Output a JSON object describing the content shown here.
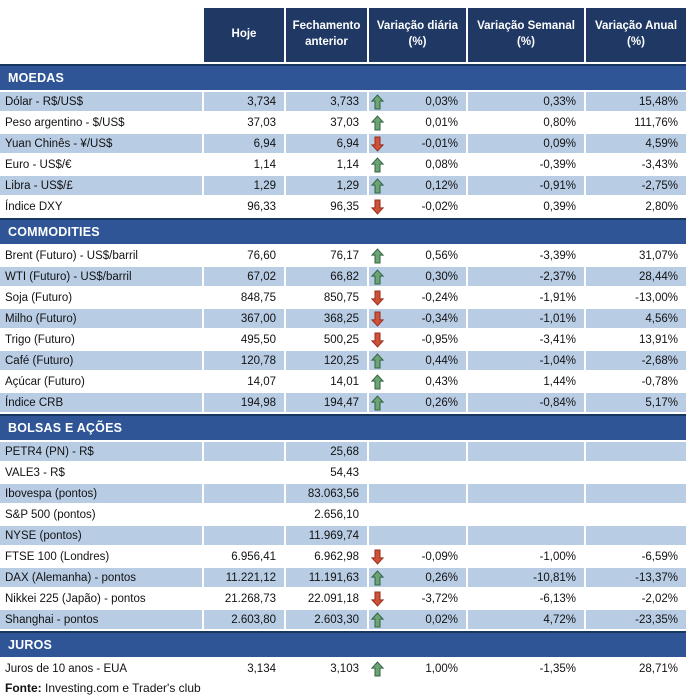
{
  "header": {
    "columns": [
      "Hoje",
      "Fechamento anterior",
      "Variação diária (%)",
      "Variação Semanal (%)",
      "Variação Anual (%)"
    ]
  },
  "sections": [
    {
      "title": "MOEDAS",
      "rows": [
        {
          "label": "Dólar - R$/US$",
          "hoje": "3,734",
          "fechamento": "3,733",
          "arrow": "up",
          "diaria": "0,03%",
          "semanal": "0,33%",
          "anual": "15,48%"
        },
        {
          "label": "Peso argentino - $/US$",
          "hoje": "37,03",
          "fechamento": "37,03",
          "arrow": "up",
          "diaria": "0,01%",
          "semanal": "0,80%",
          "anual": "111,76%"
        },
        {
          "label": "Yuan Chinês - ¥/US$",
          "hoje": "6,94",
          "fechamento": "6,94",
          "arrow": "down",
          "diaria": "-0,01%",
          "semanal": "0,09%",
          "anual": "4,59%"
        },
        {
          "label": "Euro - US$/€",
          "hoje": "1,14",
          "fechamento": "1,14",
          "arrow": "up",
          "diaria": "0,08%",
          "semanal": "-0,39%",
          "anual": "-3,43%"
        },
        {
          "label": "Libra - US$/£",
          "hoje": "1,29",
          "fechamento": "1,29",
          "arrow": "up",
          "diaria": "0,12%",
          "semanal": "-0,91%",
          "anual": "-2,75%"
        },
        {
          "label": "Índice DXY",
          "hoje": "96,33",
          "fechamento": "96,35",
          "arrow": "down",
          "diaria": "-0,02%",
          "semanal": "0,39%",
          "anual": "2,80%"
        }
      ]
    },
    {
      "title": "COMMODITIES",
      "rows": [
        {
          "label": "Brent (Futuro) - US$/barril",
          "hoje": "76,60",
          "fechamento": "76,17",
          "arrow": "up",
          "diaria": "0,56%",
          "semanal": "-3,39%",
          "anual": "31,07%"
        },
        {
          "label": "WTI (Futuro) - US$/barril",
          "hoje": "67,02",
          "fechamento": "66,82",
          "arrow": "up",
          "diaria": "0,30%",
          "semanal": "-2,37%",
          "anual": "28,44%"
        },
        {
          "label": "Soja (Futuro)",
          "hoje": "848,75",
          "fechamento": "850,75",
          "arrow": "down",
          "diaria": "-0,24%",
          "semanal": "-1,91%",
          "anual": "-13,00%"
        },
        {
          "label": "Milho (Futuro)",
          "hoje": "367,00",
          "fechamento": "368,25",
          "arrow": "down",
          "diaria": "-0,34%",
          "semanal": "-1,01%",
          "anual": "4,56%"
        },
        {
          "label": "Trigo (Futuro)",
          "hoje": "495,50",
          "fechamento": "500,25",
          "arrow": "down",
          "diaria": "-0,95%",
          "semanal": "-3,41%",
          "anual": "13,91%"
        },
        {
          "label": "Café (Futuro)",
          "hoje": "120,78",
          "fechamento": "120,25",
          "arrow": "up",
          "diaria": "0,44%",
          "semanal": "-1,04%",
          "anual": "-2,68%"
        },
        {
          "label": "Açúcar (Futuro)",
          "hoje": "14,07",
          "fechamento": "14,01",
          "arrow": "up",
          "diaria": "0,43%",
          "semanal": "1,44%",
          "anual": "-0,78%"
        },
        {
          "label": "Índice CRB",
          "hoje": "194,98",
          "fechamento": "194,47",
          "arrow": "up",
          "diaria": "0,26%",
          "semanal": "-0,84%",
          "anual": "5,17%"
        }
      ]
    },
    {
      "title": "BOLSAS E AÇÕES",
      "rows": [
        {
          "label": "PETR4 (PN) - R$",
          "hoje": "",
          "fechamento": "25,68",
          "arrow": null,
          "diaria": "",
          "semanal": "",
          "anual": ""
        },
        {
          "label": "VALE3 - R$",
          "hoje": "",
          "fechamento": "54,43",
          "arrow": null,
          "diaria": "",
          "semanal": "",
          "anual": ""
        },
        {
          "label": "Ibovespa (pontos)",
          "hoje": "",
          "fechamento": "83.063,56",
          "arrow": null,
          "diaria": "",
          "semanal": "",
          "anual": ""
        },
        {
          "label": "S&P 500 (pontos)",
          "hoje": "",
          "fechamento": "2.656,10",
          "arrow": null,
          "diaria": "",
          "semanal": "",
          "anual": ""
        },
        {
          "label": "NYSE (pontos)",
          "hoje": "",
          "fechamento": "11.969,74",
          "arrow": null,
          "diaria": "",
          "semanal": "",
          "anual": ""
        },
        {
          "label": "FTSE 100 (Londres)",
          "hoje": "6.956,41",
          "fechamento": "6.962,98",
          "arrow": "down",
          "diaria": "-0,09%",
          "semanal": "-1,00%",
          "anual": "-6,59%"
        },
        {
          "label": "DAX (Alemanha) - pontos",
          "hoje": "11.221,12",
          "fechamento": "11.191,63",
          "arrow": "up",
          "diaria": "0,26%",
          "semanal": "-10,81%",
          "anual": "-13,37%"
        },
        {
          "label": "Nikkei 225 (Japão) - pontos",
          "hoje": "21.268,73",
          "fechamento": "22.091,18",
          "arrow": "down",
          "diaria": "-3,72%",
          "semanal": "-6,13%",
          "anual": "-2,02%"
        },
        {
          "label": "Shanghai - pontos",
          "hoje": "2.603,80",
          "fechamento": "2.603,30",
          "arrow": "up",
          "diaria": "0,02%",
          "semanal": "4,72%",
          "anual": "-23,35%"
        }
      ]
    },
    {
      "title": "JUROS",
      "rows": [
        {
          "label": "Juros de 10 anos - EUA",
          "hoje": "3,134",
          "fechamento": "3,103",
          "arrow": "up",
          "diaria": "1,00%",
          "semanal": "-1,35%",
          "anual": "28,71%"
        }
      ]
    }
  ],
  "footer": {
    "label": "Fonte:",
    "text": " Investing.com e Trader's club"
  },
  "colors": {
    "header_bg": "#1F3864",
    "section_band_bg": "#2F5597",
    "section_band_border": "#17375E",
    "row_alt_bg": "#B8CCE4",
    "arrow_up_fill": "#6DA477",
    "arrow_up_stroke": "#31663F",
    "arrow_down_fill": "#D0513A",
    "arrow_down_stroke": "#96301D"
  }
}
